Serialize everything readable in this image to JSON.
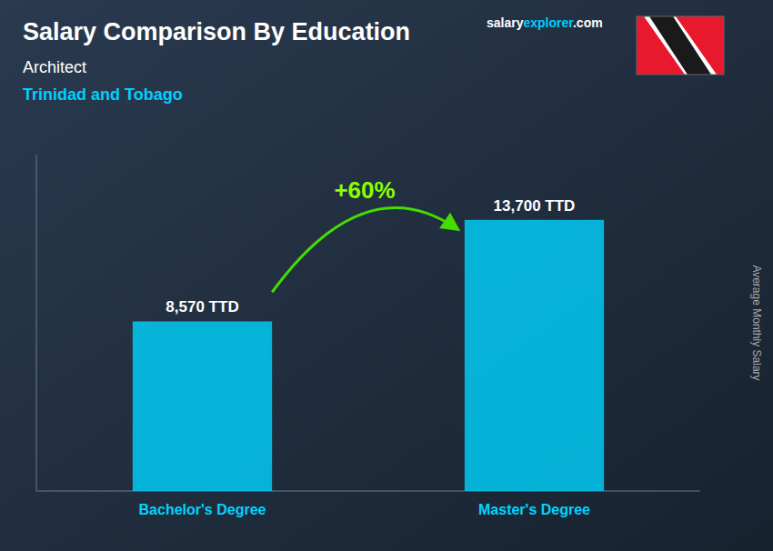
{
  "chart_data": {
    "type": "bar",
    "title": "Salary Comparison By Education",
    "subtitle": [
      "Architect",
      "Trinidad and Tobago"
    ],
    "annotations": [
      "+60%"
    ],
    "source": [
      "salary",
      "explorer",
      ".com"
    ],
    "ylabel": "Average Monthly Salary",
    "categories": [
      "Bachelor's Degree",
      "Master's Degree"
    ],
    "values": [
      8570,
      13700
    ],
    "value_labels": [
      "8,570 TTD",
      "13,700 TTD"
    ],
    "color": "#00d4ff",
    "ylim": [
      0,
      17000
    ],
    "data_labels": true,
    "tick_labels": "x",
    "grid": false
  }
}
